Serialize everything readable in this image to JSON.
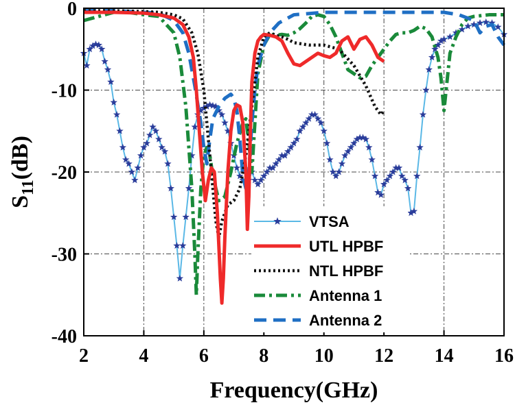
{
  "chart_data": {
    "type": "line",
    "title": "",
    "xlabel": "Frequency(GHz)",
    "ylabel_main": "S",
    "ylabel_sub": "11",
    "ylabel_unit": "(dB)",
    "xlim": [
      2,
      16
    ],
    "ylim": [
      -40,
      0
    ],
    "x_ticks": [
      2,
      4,
      6,
      8,
      10,
      12,
      14,
      16
    ],
    "y_ticks": [
      0,
      -10,
      -20,
      -30,
      -40
    ],
    "x_tick_labels": [
      "2",
      "4",
      "6",
      "8",
      "10",
      "12",
      "14",
      "16"
    ],
    "y_tick_labels": [
      "0",
      "-10",
      "-20",
      "-30",
      "-40"
    ],
    "grid": true,
    "legend_position": "bottom-right",
    "series": [
      {
        "name": "VTSA",
        "color": "#5ab8e6",
        "style": "solid-star",
        "x": [
          2.0,
          2.1,
          2.2,
          2.3,
          2.4,
          2.5,
          2.6,
          2.7,
          2.8,
          2.9,
          3.0,
          3.1,
          3.2,
          3.3,
          3.4,
          3.5,
          3.6,
          3.7,
          3.8,
          3.9,
          4.0,
          4.1,
          4.2,
          4.3,
          4.4,
          4.5,
          4.6,
          4.7,
          4.8,
          4.9,
          5.0,
          5.1,
          5.2,
          5.3,
          5.4,
          5.5,
          5.6,
          5.7,
          5.8,
          5.9,
          6.0,
          6.1,
          6.2,
          6.3,
          6.4,
          6.5,
          6.6,
          6.7,
          6.8,
          6.9,
          7.0,
          7.1,
          7.2,
          7.3,
          7.4,
          7.5,
          7.6,
          7.7,
          7.8,
          7.9,
          8.0,
          8.1,
          8.2,
          8.3,
          8.4,
          8.5,
          8.6,
          8.7,
          8.8,
          8.9,
          9.0,
          9.1,
          9.2,
          9.3,
          9.4,
          9.5,
          9.6,
          9.7,
          9.8,
          9.9,
          10.0,
          10.1,
          10.2,
          10.3,
          10.4,
          10.5,
          10.6,
          10.7,
          10.8,
          10.9,
          11.0,
          11.1,
          11.2,
          11.3,
          11.4,
          11.5,
          11.6,
          11.7,
          11.8,
          11.9,
          12.0,
          12.1,
          12.2,
          12.3,
          12.4,
          12.5,
          12.6,
          12.7,
          12.8,
          12.9,
          13.0,
          13.1,
          13.2,
          13.3,
          13.4,
          13.5,
          13.6,
          13.7,
          13.8,
          13.9,
          14.0,
          14.2,
          14.4,
          14.6,
          14.8,
          15.0,
          15.2,
          15.4,
          15.6,
          15.8,
          16.0
        ],
        "y": [
          -5.5,
          -7.0,
          -5.0,
          -4.6,
          -4.4,
          -4.5,
          -5.0,
          -6.5,
          -7.5,
          -9.0,
          -11.5,
          -13.0,
          -15.0,
          -17.0,
          -18.5,
          -19.0,
          -20.0,
          -21.0,
          -19.5,
          -18.0,
          -17.0,
          -16.5,
          -15.5,
          -14.5,
          -15.0,
          -16.0,
          -17.0,
          -17.5,
          -19.0,
          -22.0,
          -25.5,
          -29.0,
          -33.0,
          -29.0,
          -25.5,
          -22.0,
          -18.0,
          -14.5,
          -13.0,
          -12.5,
          -12.2,
          -12.0,
          -11.8,
          -11.9,
          -12.0,
          -12.5,
          -13.0,
          -14.0,
          -15.0,
          -16.5,
          -18.0,
          -19.5,
          -20.5,
          -21.0,
          -21.2,
          -21.0,
          -20.0,
          -21.0,
          -21.5,
          -21.0,
          -20.5,
          -20.0,
          -19.5,
          -19.5,
          -19.0,
          -18.5,
          -18.0,
          -18.0,
          -17.5,
          -17.0,
          -16.5,
          -16.0,
          -15.0,
          -14.5,
          -14.0,
          -13.5,
          -13.0,
          -13.0,
          -13.5,
          -14.0,
          -15.0,
          -16.5,
          -18.5,
          -20.0,
          -20.5,
          -20.0,
          -19.0,
          -18.0,
          -17.5,
          -17.0,
          -16.5,
          -16.0,
          -15.8,
          -15.8,
          -16.0,
          -17.0,
          -18.5,
          -20.5,
          -22.5,
          -22.8,
          -21.5,
          -21.0,
          -20.5,
          -20.0,
          -19.5,
          -19.5,
          -20.5,
          -21.0,
          -22.0,
          -25.0,
          -24.8,
          -20.5,
          -17.0,
          -13.0,
          -10.0,
          -7.5,
          -6.0,
          -5.0,
          -4.5,
          -4.0,
          -3.8,
          -3.5,
          -3.0,
          -2.6,
          -2.2,
          -2.0,
          -1.8,
          -1.7,
          -1.8,
          -2.3,
          -3.2
        ]
      },
      {
        "name": "UTL HPBF",
        "color": "#ef2a2a",
        "style": "solid",
        "x": [
          2.0,
          3.0,
          4.0,
          4.5,
          5.0,
          5.3,
          5.5,
          5.65,
          5.75,
          5.85,
          5.95,
          6.05,
          6.15,
          6.25,
          6.35,
          6.45,
          6.55,
          6.6,
          6.65,
          6.7,
          6.8,
          6.9,
          7.0,
          7.1,
          7.2,
          7.3,
          7.4,
          7.45,
          7.5,
          7.55,
          7.6,
          7.7,
          7.8,
          7.9,
          8.0,
          8.2,
          8.4,
          8.6,
          8.8,
          9.0,
          9.2,
          9.4,
          9.6,
          9.8,
          10.0,
          10.2,
          10.4,
          10.6,
          10.8,
          11.0,
          11.2,
          11.4,
          11.6,
          11.8,
          12.0
        ],
        "y": [
          -0.5,
          -0.5,
          -0.6,
          -0.8,
          -1.2,
          -2.0,
          -3.5,
          -6.0,
          -10.0,
          -15.0,
          -20.0,
          -23.5,
          -21.0,
          -19.5,
          -20.0,
          -25.0,
          -33.0,
          -36.0,
          -33.0,
          -28.0,
          -20.0,
          -15.0,
          -12.5,
          -11.8,
          -12.0,
          -14.0,
          -20.0,
          -27.0,
          -23.0,
          -15.0,
          -9.0,
          -5.5,
          -4.0,
          -3.5,
          -3.2,
          -3.3,
          -3.5,
          -4.0,
          -5.5,
          -6.8,
          -7.0,
          -6.5,
          -6.0,
          -5.5,
          -5.8,
          -6.0,
          -5.5,
          -4.0,
          -3.5,
          -5.0,
          -3.8,
          -3.5,
          -4.5,
          -6.0,
          -6.5
        ]
      },
      {
        "name": "NTL HPBF",
        "color": "#111111",
        "style": "dotted",
        "x": [
          2.0,
          3.0,
          4.0,
          4.5,
          5.0,
          5.3,
          5.6,
          5.8,
          6.0,
          6.1,
          6.2,
          6.3,
          6.4,
          6.5,
          6.6,
          6.8,
          7.0,
          7.2,
          7.4,
          7.6,
          7.8,
          8.0,
          8.2,
          8.4,
          8.6,
          8.8,
          9.0,
          9.5,
          10.0,
          10.5,
          11.0,
          11.4,
          11.7,
          11.9,
          12.0
        ],
        "y": [
          -0.3,
          -0.3,
          -0.4,
          -0.5,
          -0.8,
          -1.3,
          -3.0,
          -5.5,
          -10.0,
          -14.0,
          -18.0,
          -22.0,
          -26.0,
          -28.0,
          -26.0,
          -24.0,
          -23.5,
          -22.0,
          -18.0,
          -12.0,
          -6.0,
          -3.5,
          -3.0,
          -3.3,
          -3.5,
          -3.8,
          -4.2,
          -4.5,
          -4.5,
          -5.0,
          -7.0,
          -9.5,
          -12.0,
          -13.0,
          -12.5
        ]
      },
      {
        "name": "Antenna 1",
        "color": "#1a8a3a",
        "style": "dashdot",
        "x": [
          2.0,
          2.5,
          3.0,
          3.5,
          4.0,
          4.5,
          5.0,
          5.2,
          5.4,
          5.6,
          5.7,
          5.75,
          5.8,
          5.9,
          6.0,
          6.1,
          6.2,
          6.3,
          6.5,
          6.7,
          6.9,
          7.1,
          7.3,
          7.4,
          7.5,
          7.6,
          7.7,
          7.8,
          8.0,
          8.2,
          8.4,
          8.6,
          8.8,
          9.0,
          9.2,
          9.4,
          9.6,
          9.8,
          10.0,
          10.2,
          10.4,
          10.6,
          10.8,
          11.0,
          11.2,
          11.4,
          11.6,
          11.8,
          12.0,
          12.2,
          12.4,
          12.6,
          12.8,
          13.0,
          13.2,
          13.4,
          13.6,
          13.8,
          13.9,
          14.0,
          14.1,
          14.2,
          14.4,
          14.6,
          14.8,
          15.0,
          15.5,
          16.0
        ],
        "y": [
          -1.5,
          -1.0,
          -0.5,
          -0.5,
          -0.8,
          -1.0,
          -3.0,
          -6.0,
          -12.0,
          -22.0,
          -30.0,
          -35.0,
          -30.0,
          -22.0,
          -18.0,
          -17.0,
          -18.0,
          -20.5,
          -23.5,
          -23.0,
          -20.0,
          -16.5,
          -14.0,
          -13.5,
          -16.5,
          -20.0,
          -14.0,
          -8.0,
          -4.5,
          -3.2,
          -3.3,
          -3.2,
          -3.3,
          -3.0,
          -2.5,
          -1.8,
          -1.0,
          -0.8,
          -1.0,
          -2.0,
          -3.5,
          -5.5,
          -7.5,
          -8.0,
          -8.5,
          -8.3,
          -7.0,
          -6.0,
          -5.0,
          -4.0,
          -3.2,
          -3.0,
          -3.0,
          -2.7,
          -2.2,
          -2.5,
          -3.5,
          -6.0,
          -8.5,
          -12.5,
          -9.0,
          -5.5,
          -3.5,
          -2.0,
          -1.2,
          -1.0,
          -0.8,
          -0.8
        ]
      },
      {
        "name": "Antenna 2",
        "color": "#1f6fc4",
        "style": "dashed",
        "x": [
          2.0,
          3.0,
          4.0,
          4.5,
          5.0,
          5.3,
          5.5,
          5.7,
          5.9,
          6.0,
          6.1,
          6.2,
          6.3,
          6.5,
          6.7,
          6.9,
          7.0,
          7.1,
          7.2,
          7.3,
          7.4,
          7.5,
          7.6,
          7.7,
          7.8,
          8.0,
          8.2,
          8.5,
          9.0,
          10.0,
          11.0,
          12.0,
          13.0,
          14.0,
          14.5,
          15.0,
          15.2,
          15.4,
          15.6,
          15.8,
          16.0
        ],
        "y": [
          -0.3,
          -0.3,
          -0.5,
          -0.6,
          -1.5,
          -3.0,
          -5.5,
          -9.5,
          -14.0,
          -17.0,
          -19.0,
          -16.0,
          -13.5,
          -12.0,
          -11.0,
          -10.5,
          -11.0,
          -12.5,
          -16.0,
          -20.5,
          -22.0,
          -20.0,
          -14.0,
          -10.0,
          -7.0,
          -4.5,
          -3.0,
          -1.8,
          -0.8,
          -0.5,
          -0.5,
          -0.5,
          -0.5,
          -0.5,
          -0.8,
          -1.5,
          -3.0,
          -2.2,
          -2.0,
          -3.5,
          -4.5
        ]
      }
    ]
  }
}
